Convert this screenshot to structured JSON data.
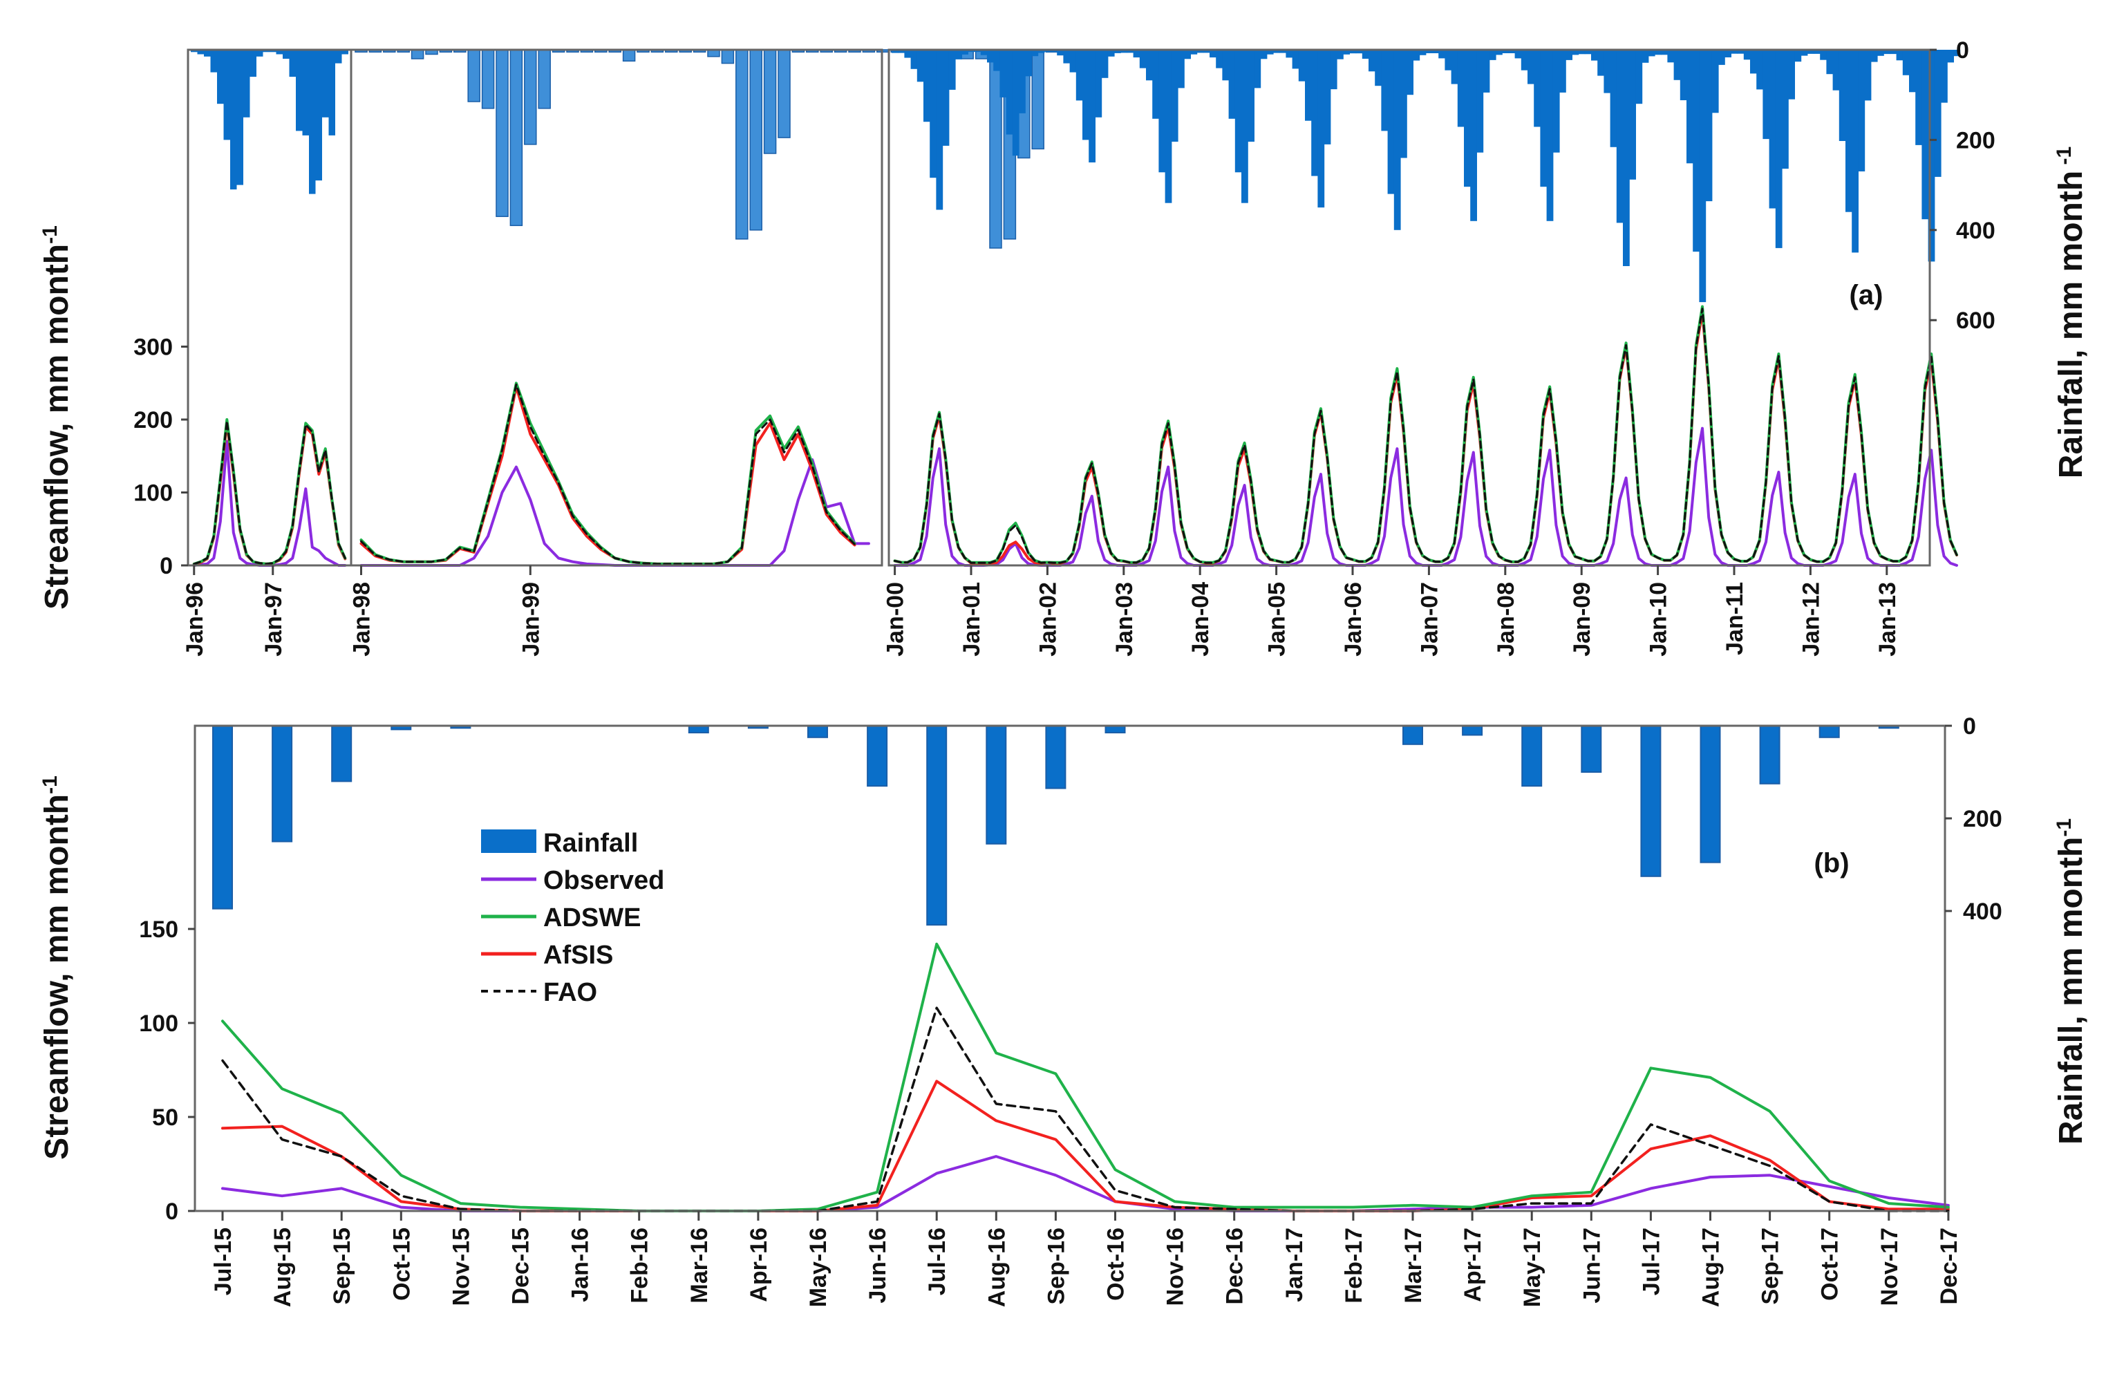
{
  "colors": {
    "rainfall": "#0a6fc9",
    "rainfall_light": "#3f8fd8",
    "observed": "#8b2be0",
    "adswe": "#1fb24a",
    "afsis": "#f2211f",
    "fao": "#111111"
  },
  "chart_data": [
    {
      "type": "line",
      "panel_label": "(a)",
      "ylabel": "Streamflow, mm month",
      "ylabel_sup": "-1",
      "y2label": "Rainfall, mm month",
      "y2label_sup": " -1",
      "ylim": [
        0,
        420
      ],
      "yticks": [
        "0",
        "100",
        "200",
        "300"
      ],
      "y2lim": [
        0,
        800
      ],
      "y2ticks": [
        "0",
        "200",
        "400",
        "600"
      ],
      "segments": [
        {
          "start": "1996-01",
          "x_ticks": [
            "Jan-96",
            "Jan-97"
          ],
          "rainfall": [
            5,
            10,
            15,
            50,
            120,
            200,
            310,
            300,
            150,
            60,
            15,
            5,
            5,
            10,
            20,
            60,
            180,
            190,
            320,
            290,
            150,
            190,
            30,
            10
          ],
          "observed": [
            0,
            1,
            2,
            10,
            60,
            170,
            45,
            10,
            3,
            1,
            0,
            0,
            0,
            1,
            3,
            10,
            50,
            105,
            25,
            20,
            10,
            5,
            0,
            0
          ],
          "adswe": [
            2,
            5,
            10,
            40,
            120,
            200,
            130,
            50,
            15,
            5,
            3,
            2,
            3,
            8,
            20,
            55,
            130,
            195,
            185,
            130,
            160,
            90,
            30,
            10
          ],
          "afsis": [
            2,
            4,
            9,
            38,
            115,
            195,
            125,
            48,
            14,
            5,
            3,
            2,
            3,
            7,
            18,
            52,
            125,
            190,
            180,
            125,
            155,
            88,
            28,
            9
          ],
          "fao": [
            2,
            5,
            10,
            40,
            118,
            198,
            128,
            50,
            15,
            5,
            3,
            2,
            3,
            8,
            19,
            54,
            128,
            193,
            183,
            128,
            158,
            90,
            30,
            10
          ]
        },
        {
          "start": "1998-01",
          "x_ticks": [
            "Jan-98",
            "Jan-99"
          ],
          "rainfall": [
            5,
            5,
            5,
            5,
            20,
            10,
            5,
            5,
            115,
            130,
            370,
            390,
            210,
            130,
            5,
            5,
            5,
            5,
            5,
            25,
            5,
            5,
            5,
            5,
            5,
            15,
            30,
            420,
            400,
            230,
            195,
            5,
            5,
            5,
            5,
            5,
            5,
            5,
            5,
            5,
            5,
            5,
            5,
            20,
            20,
            440,
            420,
            240,
            220,
            5,
            5,
            5,
            5,
            5,
            5
          ],
          "observed": [
            0,
            0,
            0,
            0,
            0,
            0,
            0,
            0,
            10,
            40,
            100,
            135,
            90,
            30,
            10,
            5,
            2,
            1,
            0,
            0,
            0,
            0,
            0,
            0,
            0,
            0,
            0,
            0,
            0,
            0,
            20,
            90,
            145,
            80,
            85,
            30,
            30
          ],
          "adswe": [
            35,
            15,
            8,
            5,
            5,
            5,
            8,
            25,
            20,
            90,
            160,
            250,
            195,
            155,
            115,
            70,
            45,
            25,
            10,
            5,
            3,
            2,
            2,
            2,
            2,
            2,
            5,
            25,
            185,
            205,
            160,
            190,
            140,
            75,
            50,
            30
          ],
          "afsis": [
            30,
            13,
            7,
            5,
            5,
            5,
            7,
            23,
            18,
            85,
            150,
            245,
            180,
            145,
            110,
            65,
            40,
            22,
            10,
            5,
            3,
            2,
            2,
            2,
            2,
            2,
            5,
            22,
            165,
            195,
            145,
            180,
            130,
            70,
            45,
            28
          ],
          "fao": [
            33,
            14,
            8,
            5,
            5,
            5,
            8,
            24,
            19,
            88,
            158,
            248,
            190,
            150,
            113,
            68,
            43,
            24,
            10,
            5,
            3,
            2,
            2,
            2,
            2,
            2,
            5,
            24,
            180,
            200,
            155,
            186,
            136,
            73,
            48,
            29
          ]
        },
        {
          "start": "2000-01",
          "x_ticks": [
            "Jan-00",
            "Jan-01",
            "Jan-02",
            "Jan-03",
            "Jan-04",
            "Jan-05",
            "Jan-06",
            "Jan-07",
            "Jan-08",
            "Jan-09",
            "Jan-10",
            "Jan-11",
            "Jan-12",
            "Jan-13"
          ],
          "rainfall_annual_peak": [
            355,
            235,
            250,
            340,
            340,
            350,
            400,
            380,
            380,
            480,
            560,
            440,
            450,
            470
          ],
          "streamflow_annual": [
            {
              "observed": 160,
              "adswe": 210,
              "afsis": 205,
              "fao": 208
            },
            {
              "observed": 30,
              "adswe": 58,
              "afsis": 32,
              "fao": 55
            },
            {
              "observed": 95,
              "adswe": 142,
              "afsis": 135,
              "fao": 140
            },
            {
              "observed": 135,
              "adswe": 198,
              "afsis": 190,
              "fao": 195
            },
            {
              "observed": 110,
              "adswe": 168,
              "afsis": 160,
              "fao": 165
            },
            {
              "observed": 125,
              "adswe": 215,
              "afsis": 210,
              "fao": 212
            },
            {
              "observed": 160,
              "adswe": 270,
              "afsis": 262,
              "fao": 266
            },
            {
              "observed": 155,
              "adswe": 258,
              "afsis": 250,
              "fao": 255
            },
            {
              "observed": 158,
              "adswe": 245,
              "afsis": 238,
              "fao": 242
            },
            {
              "observed": 120,
              "adswe": 305,
              "afsis": 300,
              "fao": 302
            },
            {
              "observed": 188,
              "adswe": 355,
              "afsis": 348,
              "fao": 352
            },
            {
              "observed": 128,
              "adswe": 290,
              "afsis": 283,
              "fao": 287
            },
            {
              "observed": 125,
              "adswe": 262,
              "afsis": 255,
              "fao": 258
            },
            {
              "observed": 158,
              "adswe": 290,
              "afsis": 282,
              "fao": 286
            }
          ]
        }
      ]
    },
    {
      "type": "line",
      "panel_label": "(b)",
      "ylabel": "Streamflow, mm month",
      "ylabel_sup": "-1",
      "y2label": "Rainfall, mm month",
      "y2label_sup": "-1",
      "ylim": [
        0,
        260
      ],
      "yticks": [
        "0",
        "50",
        "100",
        "150"
      ],
      "y2lim": [
        0,
        1000
      ],
      "y2ticks": [
        "0",
        "200",
        "400"
      ],
      "categories": [
        "Jul-15",
        "Aug-15",
        "Sep-15",
        "Oct-15",
        "Nov-15",
        "Dec-15",
        "Jan-16",
        "Feb-16",
        "Mar-16",
        "Apr-16",
        "May-16",
        "Jun-16",
        "Jul-16",
        "Aug-16",
        "Sep-16",
        "Oct-16",
        "Nov-16",
        "Dec-16",
        "Jan-17",
        "Feb-17",
        "Mar-17",
        "Apr-17",
        "May-17",
        "Jun-17",
        "Jul-17",
        "Aug-17",
        "Sep-17",
        "Oct-17",
        "Nov-17",
        "Dec-17"
      ],
      "series": [
        {
          "name": "Rainfall",
          "kind": "bar",
          "values": [
            395,
            250,
            120,
            8,
            5,
            0,
            0,
            0,
            15,
            5,
            25,
            130,
            430,
            255,
            135,
            15,
            0,
            0,
            0,
            0,
            40,
            20,
            130,
            100,
            325,
            295,
            125,
            25,
            5,
            0
          ]
        },
        {
          "name": "Observed",
          "values": [
            12,
            8,
            12,
            2,
            0,
            0,
            0,
            0,
            0,
            0,
            0,
            2,
            20,
            29,
            19,
            5,
            1,
            0,
            0,
            0,
            1,
            2,
            2,
            3,
            12,
            18,
            19,
            13,
            7,
            3
          ]
        },
        {
          "name": "ADSWE",
          "values": [
            101,
            65,
            52,
            19,
            4,
            2,
            1,
            0,
            0,
            0,
            1,
            10,
            142,
            84,
            73,
            22,
            5,
            2,
            2,
            2,
            3,
            2,
            8,
            10,
            76,
            71,
            53,
            16,
            4,
            2
          ]
        },
        {
          "name": "AfSIS",
          "values": [
            44,
            45,
            29,
            5,
            1,
            0,
            0,
            0,
            0,
            0,
            0,
            3,
            69,
            48,
            38,
            5,
            2,
            1,
            0,
            0,
            0,
            1,
            7,
            8,
            33,
            40,
            27,
            5,
            1,
            1
          ]
        },
        {
          "name": "FAO",
          "values": [
            80,
            38,
            29,
            8,
            1,
            0,
            0,
            0,
            0,
            0,
            0,
            5,
            108,
            57,
            53,
            11,
            2,
            1,
            0,
            0,
            0,
            1,
            4,
            4,
            46,
            35,
            24,
            5,
            0,
            0
          ]
        }
      ]
    }
  ]
}
